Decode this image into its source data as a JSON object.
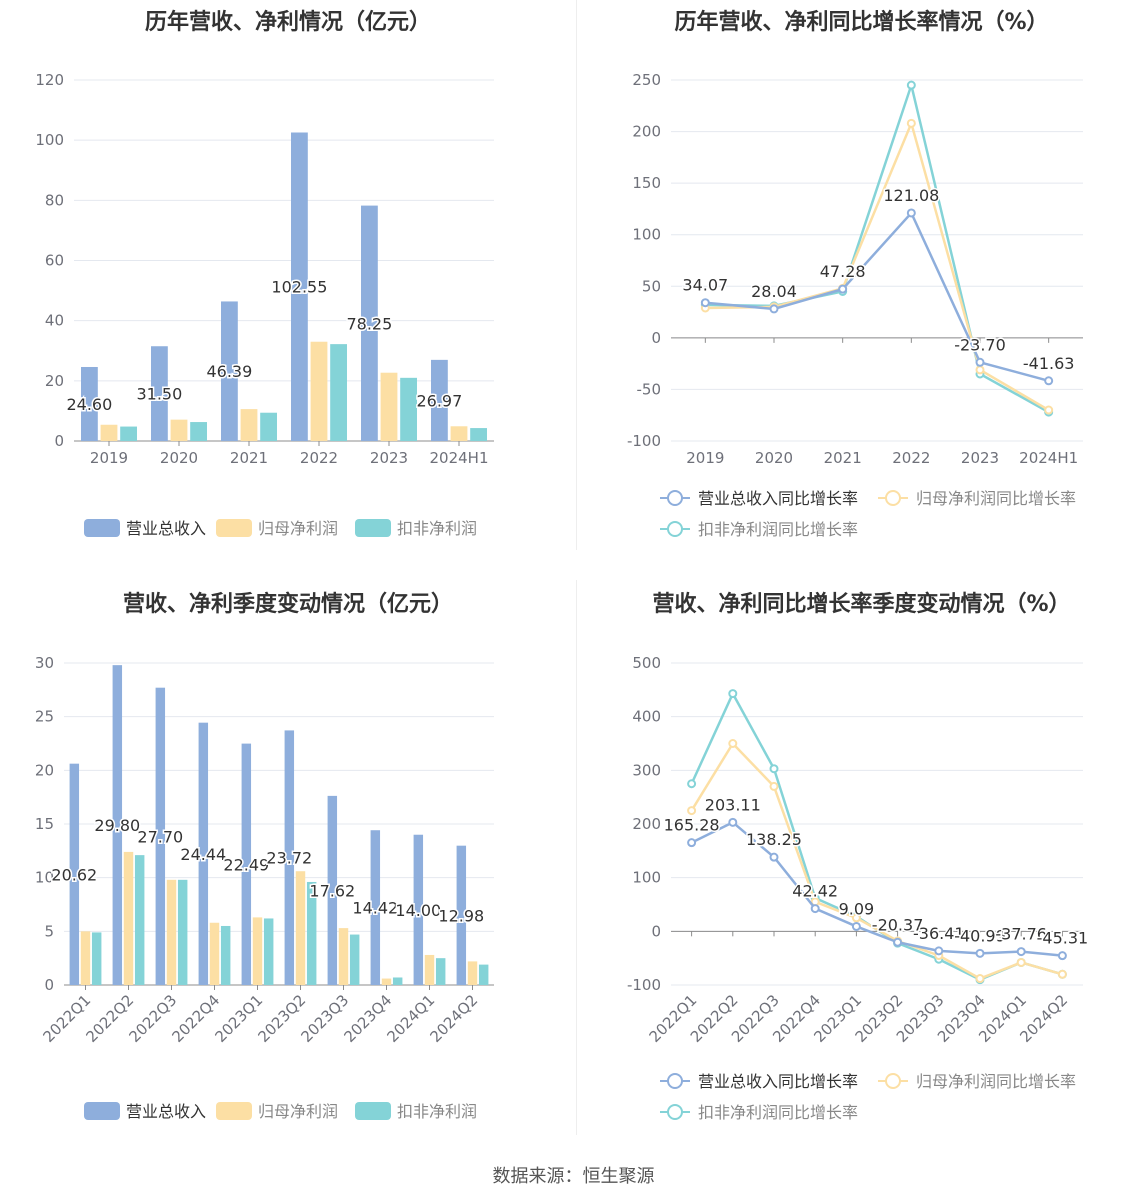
{
  "source_note": "数据来源：恒生聚源",
  "colors": {
    "revenue": "#8eaedc",
    "net_profit": "#fcdfa4",
    "deducted_profit": "#84d3d7",
    "grid": "#e4e8ef",
    "axis_text": "#6e7079",
    "label_text": "#333333"
  },
  "chart_data": [
    {
      "type": "bar",
      "title": "历年营收、净利情况（亿元）",
      "categories": [
        "2019",
        "2020",
        "2021",
        "2022",
        "2023",
        "2024H1"
      ],
      "ylim": [
        0,
        120
      ],
      "yticks": [
        0,
        20,
        40,
        60,
        80,
        100,
        120
      ],
      "grid": true,
      "legend_position": "bottom",
      "series": [
        {
          "name": "营业总收入",
          "values": [
            24.6,
            31.5,
            46.39,
            102.55,
            78.25,
            26.97
          ],
          "labels": [
            "24.60",
            "31.50",
            "46.39",
            "102.55",
            "78.25",
            "26.97"
          ]
        },
        {
          "name": "归母净利润",
          "values": [
            5.4,
            7.1,
            10.6,
            33.0,
            22.7,
            4.9
          ]
        },
        {
          "name": "扣非净利润",
          "values": [
            4.8,
            6.3,
            9.4,
            32.2,
            21.0,
            4.3
          ]
        }
      ]
    },
    {
      "type": "line",
      "title": "历年营收、净利同比增长率情况（%）",
      "categories": [
        "2019",
        "2020",
        "2021",
        "2022",
        "2023",
        "2024H1"
      ],
      "ylim": [
        -100,
        250
      ],
      "yticks": [
        -100,
        -50,
        0,
        50,
        100,
        150,
        200,
        250
      ],
      "grid": true,
      "legend_position": "bottom",
      "series": [
        {
          "name": "营业总收入同比增长率",
          "values": [
            34.07,
            28.04,
            47.28,
            121.08,
            -23.7,
            -41.63
          ],
          "labels": [
            "34.07",
            "28.04",
            "47.28",
            "121.08",
            "-23.70",
            "-41.63"
          ]
        },
        {
          "name": "归母净利润同比增长率",
          "values": [
            29,
            30,
            48,
            208,
            -31,
            -70
          ]
        },
        {
          "name": "扣非净利润同比增长率",
          "values": [
            32,
            31,
            45,
            245,
            -35,
            -72
          ]
        }
      ]
    },
    {
      "type": "bar",
      "title": "营收、净利季度变动情况（亿元）",
      "categories": [
        "2022Q1",
        "2022Q2",
        "2022Q3",
        "2022Q4",
        "2023Q1",
        "2023Q2",
        "2023Q3",
        "2023Q4",
        "2024Q1",
        "2024Q2"
      ],
      "ylim": [
        0,
        30
      ],
      "yticks": [
        0,
        5,
        10,
        15,
        20,
        25,
        30
      ],
      "grid": true,
      "legend_position": "bottom",
      "series": [
        {
          "name": "营业总收入",
          "values": [
            20.62,
            29.8,
            27.7,
            24.44,
            22.49,
            23.72,
            17.62,
            14.42,
            14.0,
            12.98
          ],
          "labels": [
            "20.62",
            "29.80",
            "27.70",
            "24.44",
            "22.49",
            "23.72",
            "17.62",
            "14.42",
            "14.00",
            "12.98"
          ]
        },
        {
          "name": "归母净利润",
          "values": [
            5.0,
            12.4,
            9.8,
            5.8,
            6.3,
            10.6,
            5.3,
            0.6,
            2.8,
            2.2
          ]
        },
        {
          "name": "扣非净利润",
          "values": [
            4.9,
            12.1,
            9.8,
            5.5,
            6.2,
            9.6,
            4.7,
            0.7,
            2.5,
            1.9
          ]
        }
      ]
    },
    {
      "type": "line",
      "title": "营收、净利同比增长率季度变动情况（%）",
      "categories": [
        "2022Q1",
        "2022Q2",
        "2022Q3",
        "2022Q4",
        "2023Q1",
        "2023Q2",
        "2023Q3",
        "2023Q4",
        "2024Q1",
        "2024Q2"
      ],
      "ylim": [
        -100,
        500
      ],
      "yticks": [
        -100,
        0,
        100,
        200,
        300,
        400,
        500
      ],
      "grid": true,
      "legend_position": "bottom",
      "series": [
        {
          "name": "营业总收入同比增长率",
          "values": [
            165.28,
            203.11,
            138.25,
            42.42,
            9.09,
            -20.37,
            -36.41,
            -40.99,
            -37.76,
            -45.31
          ],
          "labels": [
            "165.28",
            "203.11",
            "138.25",
            "42.42",
            "9.09",
            "-20.37",
            "-36.41",
            "-40.99",
            "-37.76",
            "-45.31"
          ]
        },
        {
          "name": "归母净利润同比增长率",
          "values": [
            225,
            350,
            270,
            55,
            25,
            -18,
            -45,
            -88,
            -58,
            -80
          ]
        },
        {
          "name": "扣非净利润同比增长率",
          "values": [
            275,
            443,
            303,
            62,
            28,
            -22,
            -52,
            -90,
            -58,
            -80
          ]
        }
      ]
    }
  ]
}
